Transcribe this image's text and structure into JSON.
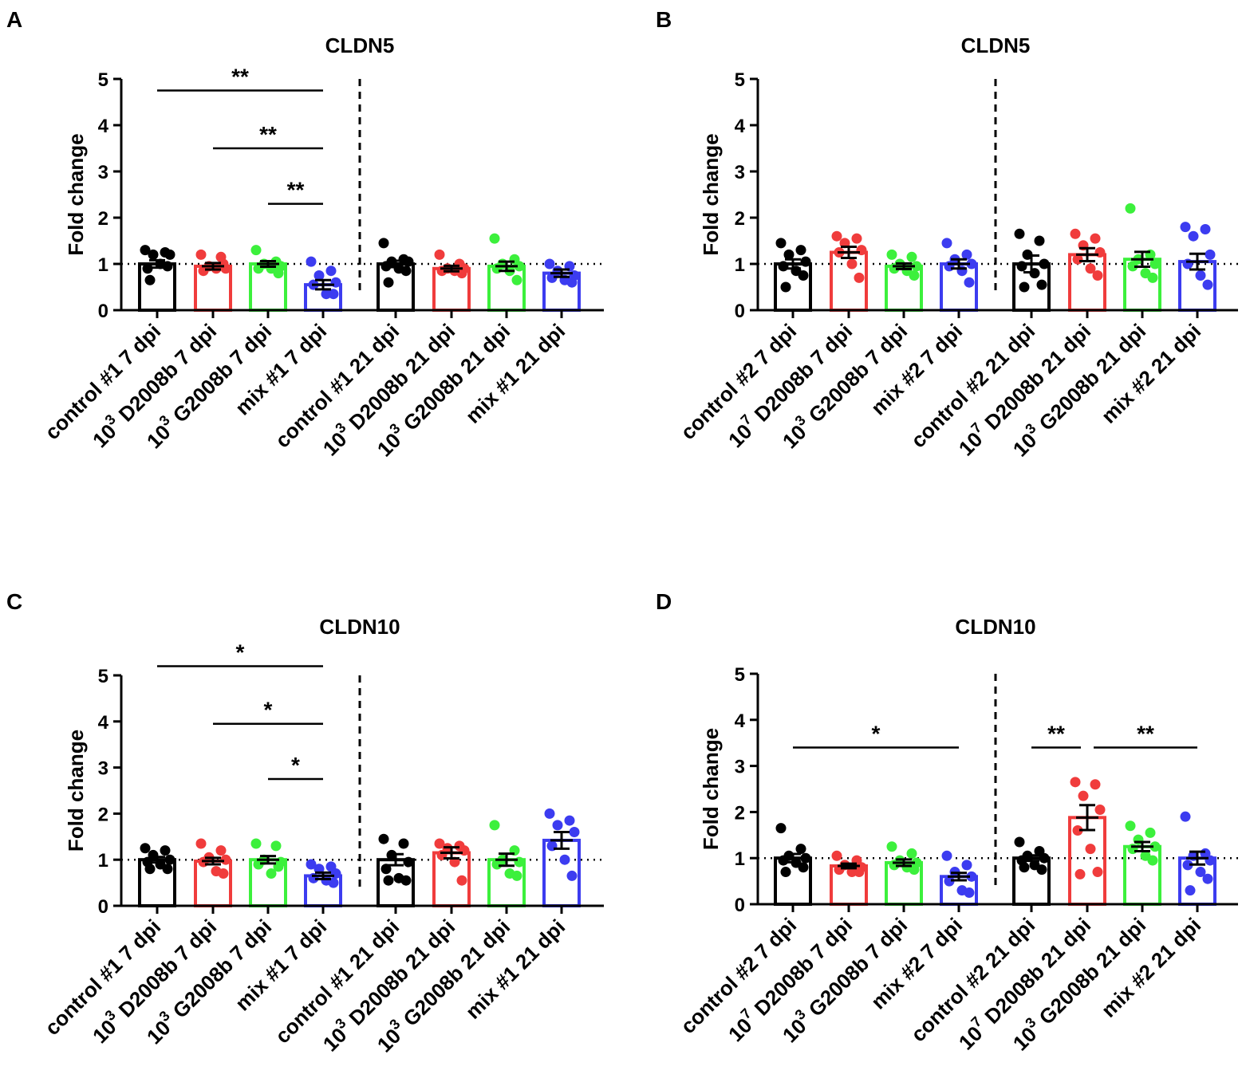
{
  "chart_data": [
    {
      "panel": "A",
      "type": "bar",
      "title": "CLDN5",
      "ylabel": "Fold change",
      "ylim": [
        0,
        5
      ],
      "yticks": [
        "0",
        "1",
        "2",
        "3",
        "4",
        "5"
      ],
      "reference_line": 1,
      "categories": [
        {
          "pre": "control #1 7 dpi"
        },
        {
          "pre": "10",
          "sup": "3",
          "post": " D2008b 7 dpi"
        },
        {
          "pre": "10",
          "sup": "3",
          "post": " G2008b 7 dpi"
        },
        {
          "pre": "mix #1 7 dpi"
        },
        {
          "pre": "control #1 21 dpi"
        },
        {
          "pre": "10",
          "sup": "3",
          "post": " D2008b 21 dpi"
        },
        {
          "pre": "10",
          "sup": "3",
          "post": " G2008b 21 dpi"
        },
        {
          "pre": "mix #1 21 dpi"
        }
      ],
      "colors": [
        "#000000",
        "#f03c3c",
        "#3cf03c",
        "#3c3cf0",
        "#000000",
        "#f03c3c",
        "#3cf03c",
        "#3c3cf0"
      ],
      "values": [
        1.0,
        0.95,
        1.0,
        0.55,
        1.0,
        0.9,
        0.95,
        0.8
      ],
      "sem": [
        0.08,
        0.07,
        0.06,
        0.1,
        0.07,
        0.06,
        0.1,
        0.08
      ],
      "points": [
        [
          1.3,
          1.25,
          1.2,
          1.2,
          0.9,
          1.0,
          0.95,
          0.65
        ],
        [
          1.2,
          1.15,
          0.95,
          0.9,
          0.85,
          0.9,
          1.0
        ],
        [
          1.3,
          1.05,
          1.0,
          0.95,
          0.9,
          0.9,
          0.8
        ],
        [
          1.05,
          0.85,
          0.75,
          0.6,
          0.55,
          0.35,
          0.35
        ],
        [
          1.45,
          1.1,
          1.05,
          1.05,
          0.95,
          0.9,
          0.85,
          0.6
        ],
        [
          1.2,
          1.0,
          0.9,
          0.9,
          0.85,
          0.85,
          0.8
        ],
        [
          1.55,
          1.1,
          1.0,
          0.95,
          0.9,
          0.85,
          0.65
        ],
        [
          1.0,
          0.95,
          0.85,
          0.75,
          0.7,
          0.65,
          0.6
        ]
      ],
      "comparisons": [
        {
          "from": 0,
          "to": 3,
          "y": 4.75,
          "label": "**"
        },
        {
          "from": 1,
          "to": 3,
          "y": 3.5,
          "label": "**"
        },
        {
          "from": 2,
          "to": 3,
          "y": 2.3,
          "label": "**"
        }
      ]
    },
    {
      "panel": "B",
      "type": "bar",
      "title": "CLDN5",
      "ylabel": "Fold change",
      "ylim": [
        0,
        5
      ],
      "yticks": [
        "0",
        "1",
        "2",
        "3",
        "4",
        "5"
      ],
      "reference_line": 1,
      "categories": [
        {
          "pre": "control #2 7 dpi"
        },
        {
          "pre": "10",
          "sup": "7",
          "post": " D2008b 7 dpi"
        },
        {
          "pre": "10",
          "sup": "3",
          "post": " G2008b 7 dpi"
        },
        {
          "pre": "mix #2 7 dpi"
        },
        {
          "pre": "control #2 21 dpi"
        },
        {
          "pre": "10",
          "sup": "7",
          "post": " D2008b 21 dpi"
        },
        {
          "pre": "10",
          "sup": "3",
          "post": " G2008b 21 dpi"
        },
        {
          "pre": "mix #2 21 dpi"
        }
      ],
      "colors": [
        "#000000",
        "#f03c3c",
        "#3cf03c",
        "#3c3cf0",
        "#000000",
        "#f03c3c",
        "#3cf03c",
        "#3c3cf0"
      ],
      "values": [
        1.0,
        1.25,
        0.95,
        1.0,
        1.0,
        1.2,
        1.1,
        1.05
      ],
      "sem": [
        0.1,
        0.12,
        0.06,
        0.1,
        0.18,
        0.14,
        0.16,
        0.17
      ],
      "points": [
        [
          1.45,
          1.3,
          1.2,
          1.05,
          0.95,
          0.85,
          0.75,
          0.5
        ],
        [
          1.6,
          1.55,
          1.45,
          1.3,
          1.25,
          1.0,
          0.7
        ],
        [
          1.2,
          1.15,
          1.0,
          0.95,
          0.9,
          0.85,
          0.75
        ],
        [
          1.45,
          1.2,
          1.1,
          1.0,
          0.95,
          0.85,
          0.6
        ],
        [
          1.65,
          1.5,
          1.2,
          1.0,
          0.95,
          0.8,
          0.55,
          0.5
        ],
        [
          1.65,
          1.55,
          1.4,
          1.25,
          1.1,
          0.9,
          0.75
        ],
        [
          2.2,
          1.2,
          1.1,
          1.0,
          0.95,
          0.8,
          0.7
        ],
        [
          1.8,
          1.75,
          1.6,
          1.2,
          1.0,
          0.75,
          0.55
        ]
      ],
      "comparisons": []
    },
    {
      "panel": "C",
      "type": "bar",
      "title": "CLDN10",
      "ylabel": "Fold change",
      "ylim": [
        0,
        5
      ],
      "yticks": [
        "0",
        "1",
        "2",
        "3",
        "4",
        "5"
      ],
      "reference_line": 1,
      "categories": [
        {
          "pre": "control #1 7 dpi"
        },
        {
          "pre": "10",
          "sup": "3",
          "post": " D2008b 7 dpi"
        },
        {
          "pre": "10",
          "sup": "3",
          "post": " G2008b 7 dpi"
        },
        {
          "pre": "mix #1 7 dpi"
        },
        {
          "pre": "control #1 21 dpi"
        },
        {
          "pre": "10",
          "sup": "3",
          "post": " D2008b 21 dpi"
        },
        {
          "pre": "10",
          "sup": "3",
          "post": " G2008b 21 dpi"
        },
        {
          "pre": "mix #1 21 dpi"
        }
      ],
      "colors": [
        "#000000",
        "#f03c3c",
        "#3cf03c",
        "#3c3cf0",
        "#000000",
        "#f03c3c",
        "#3cf03c",
        "#3c3cf0"
      ],
      "values": [
        1.0,
        0.97,
        1.0,
        0.65,
        1.0,
        1.15,
        1.0,
        1.42
      ],
      "sem": [
        0.06,
        0.07,
        0.08,
        0.07,
        0.12,
        0.12,
        0.13,
        0.18
      ],
      "points": [
        [
          1.25,
          1.2,
          1.1,
          1.0,
          0.95,
          0.9,
          0.8,
          0.8
        ],
        [
          1.35,
          1.2,
          1.05,
          1.0,
          0.95,
          0.75,
          0.7
        ],
        [
          1.35,
          1.3,
          1.0,
          0.95,
          0.9,
          0.7,
          0.85
        ],
        [
          0.9,
          0.85,
          0.8,
          0.7,
          0.6,
          0.55,
          0.5
        ],
        [
          1.45,
          1.35,
          1.1,
          0.95,
          0.8,
          0.6,
          0.55,
          0.55
        ],
        [
          1.35,
          1.3,
          1.25,
          1.2,
          1.1,
          0.95,
          0.55
        ],
        [
          1.75,
          1.2,
          1.0,
          0.95,
          0.9,
          0.7,
          0.65
        ],
        [
          2.0,
          1.85,
          1.75,
          1.6,
          1.3,
          1.0,
          0.65
        ]
      ],
      "comparisons": [
        {
          "from": 0,
          "to": 3,
          "y": 5.2,
          "label": "*"
        },
        {
          "from": 1,
          "to": 3,
          "y": 3.95,
          "label": "*"
        },
        {
          "from": 2,
          "to": 3,
          "y": 2.75,
          "label": "*"
        }
      ]
    },
    {
      "panel": "D",
      "type": "bar",
      "title": "CLDN10",
      "ylabel": "Fold change",
      "ylim": [
        0,
        5
      ],
      "yticks": [
        "0",
        "1",
        "2",
        "3",
        "4",
        "5"
      ],
      "reference_line": 1,
      "categories": [
        {
          "pre": "control #2 7 dpi"
        },
        {
          "pre": "10",
          "sup": "7",
          "post": " D2008b 7 dpi"
        },
        {
          "pre": "10",
          "sup": "3",
          "post": " G2008b 7 dpi"
        },
        {
          "pre": "mix #2 7 dpi"
        },
        {
          "pre": "control #2 21 dpi"
        },
        {
          "pre": "10",
          "sup": "7",
          "post": " D2008b 21 dpi"
        },
        {
          "pre": "10",
          "sup": "3",
          "post": " G2008b 21 dpi"
        },
        {
          "pre": "mix #2 21 dpi"
        }
      ],
      "colors": [
        "#000000",
        "#f03c3c",
        "#3cf03c",
        "#3c3cf0",
        "#000000",
        "#f03c3c",
        "#3cf03c",
        "#3c3cf0"
      ],
      "values": [
        1.0,
        0.83,
        0.9,
        0.6,
        1.0,
        1.88,
        1.25,
        1.0
      ],
      "sem": [
        0.09,
        0.05,
        0.07,
        0.08,
        0.06,
        0.27,
        0.1,
        0.14
      ],
      "points": [
        [
          1.65,
          1.2,
          1.05,
          1.0,
          0.95,
          0.9,
          0.8,
          0.7
        ],
        [
          1.05,
          0.95,
          0.85,
          0.8,
          0.75,
          0.7,
          0.7
        ],
        [
          1.25,
          1.1,
          0.95,
          0.9,
          0.85,
          0.8,
          0.75
        ],
        [
          1.05,
          0.85,
          0.7,
          0.6,
          0.5,
          0.3,
          0.25
        ],
        [
          1.35,
          1.15,
          1.05,
          1.0,
          0.95,
          0.85,
          0.75,
          0.8
        ],
        [
          2.65,
          2.6,
          2.35,
          2.05,
          1.6,
          1.2,
          0.7,
          0.65
        ],
        [
          1.7,
          1.55,
          1.4,
          1.25,
          1.2,
          1.05,
          0.95
        ],
        [
          1.9,
          1.1,
          1.05,
          0.95,
          0.85,
          0.7,
          0.55,
          0.3
        ]
      ],
      "comparisons": [
        {
          "from": 0,
          "to": 3,
          "y": 3.4,
          "label": "*"
        },
        {
          "from": 4,
          "to": 5,
          "y": 3.4,
          "label": "**"
        },
        {
          "from": 5,
          "to": 7,
          "y": 3.4,
          "label": "**"
        }
      ]
    }
  ]
}
